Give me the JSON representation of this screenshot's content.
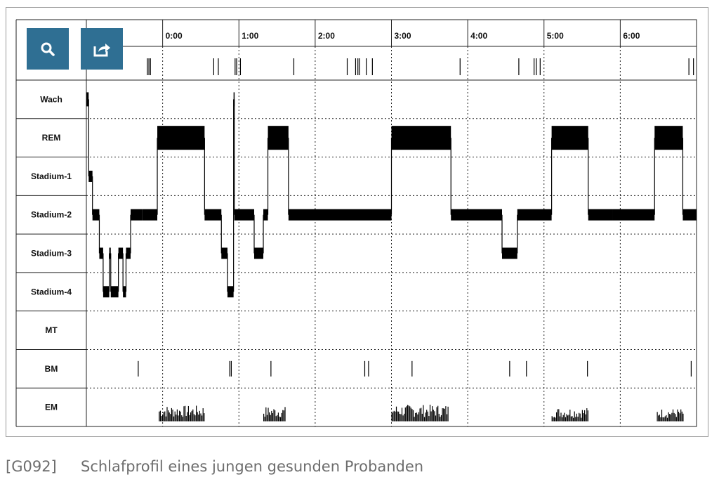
{
  "figure": {
    "code": "[G092]",
    "caption": "Schlafprofil eines jungen gesunden Probanden"
  },
  "toolbar": {
    "search_icon": "search-icon",
    "share_icon": "share-icon",
    "color": "#2f6f93"
  },
  "chart_data": {
    "type": "hypnogram",
    "xlabel": "",
    "ylabel": "",
    "x_ticks": [
      "0:00",
      "1:00",
      "2:00",
      "3:00",
      "4:00",
      "5:00",
      "6:00"
    ],
    "x_range_hours": [
      -1.0,
      7.0
    ],
    "rows": [
      "Wach",
      "REM",
      "Stadium-1",
      "Stadium-2",
      "Stadium-3",
      "Stadium-4",
      "MT",
      "BM",
      "EM"
    ],
    "grid": true,
    "stage_series": {
      "name": "",
      "segments": [
        {
          "start": -1.0,
          "end": -0.97,
          "stage": "Wach"
        },
        {
          "start": -0.97,
          "end": -0.92,
          "stage": "Stadium-1"
        },
        {
          "start": -0.92,
          "end": -0.83,
          "stage": "Stadium-2"
        },
        {
          "start": -0.83,
          "end": -0.78,
          "stage": "Stadium-3"
        },
        {
          "start": -0.78,
          "end": -0.7,
          "stage": "Stadium-4"
        },
        {
          "start": -0.7,
          "end": -0.68,
          "stage": "Stadium-3"
        },
        {
          "start": -0.68,
          "end": -0.58,
          "stage": "Stadium-4"
        },
        {
          "start": -0.58,
          "end": -0.52,
          "stage": "Stadium-3"
        },
        {
          "start": -0.52,
          "end": -0.48,
          "stage": "Stadium-4"
        },
        {
          "start": -0.48,
          "end": -0.42,
          "stage": "Stadium-3"
        },
        {
          "start": -0.42,
          "end": -0.27,
          "stage": "Stadium-2"
        },
        {
          "start": -0.27,
          "end": -0.07,
          "stage": "Stadium-2"
        },
        {
          "start": -0.07,
          "end": 0.55,
          "stage": "REM"
        },
        {
          "start": 0.55,
          "end": 0.77,
          "stage": "Stadium-2"
        },
        {
          "start": 0.77,
          "end": 0.85,
          "stage": "Stadium-3"
        },
        {
          "start": 0.85,
          "end": 0.93,
          "stage": "Stadium-4"
        },
        {
          "start": 0.93,
          "end": 0.94,
          "stage": "Wach"
        },
        {
          "start": 0.94,
          "end": 1.2,
          "stage": "Stadium-2"
        },
        {
          "start": 1.2,
          "end": 1.32,
          "stage": "Stadium-3"
        },
        {
          "start": 1.32,
          "end": 1.38,
          "stage": "Stadium-2"
        },
        {
          "start": 1.38,
          "end": 1.65,
          "stage": "REM"
        },
        {
          "start": 1.65,
          "end": 3.0,
          "stage": "Stadium-2"
        },
        {
          "start": 3.0,
          "end": 3.78,
          "stage": "REM"
        },
        {
          "start": 3.78,
          "end": 4.45,
          "stage": "Stadium-2"
        },
        {
          "start": 4.45,
          "end": 4.65,
          "stage": "Stadium-3"
        },
        {
          "start": 4.65,
          "end": 5.1,
          "stage": "Stadium-2"
        },
        {
          "start": 5.1,
          "end": 5.58,
          "stage": "REM"
        },
        {
          "start": 5.58,
          "end": 5.9,
          "stage": "Stadium-2"
        },
        {
          "start": 5.9,
          "end": 6.45,
          "stage": "Stadium-2"
        },
        {
          "start": 6.45,
          "end": 6.82,
          "stage": "REM"
        },
        {
          "start": 6.82,
          "end": 7.0,
          "stage": "Stadium-2"
        }
      ]
    },
    "top_event_marks": [
      -0.2,
      -0.18,
      -0.16,
      0.67,
      0.73,
      0.95,
      0.97,
      1.02,
      1.72,
      2.42,
      2.53,
      2.56,
      2.58,
      2.67,
      2.75,
      3.9,
      4.67,
      4.87,
      4.9,
      4.95,
      6.9,
      6.96
    ],
    "bm_marks": [
      -0.32,
      0.88,
      0.9,
      1.42,
      2.65,
      2.7,
      3.27,
      4.55,
      4.77,
      5.57,
      6.93
    ],
    "em_bursts": [
      {
        "start": -0.05,
        "end": 0.55,
        "level": 0.8
      },
      {
        "start": 1.32,
        "end": 1.6,
        "level": 0.75
      },
      {
        "start": 3.0,
        "end": 3.75,
        "level": 0.85
      },
      {
        "start": 5.1,
        "end": 5.58,
        "level": 0.7
      },
      {
        "start": 6.48,
        "end": 6.82,
        "level": 0.65
      }
    ]
  }
}
